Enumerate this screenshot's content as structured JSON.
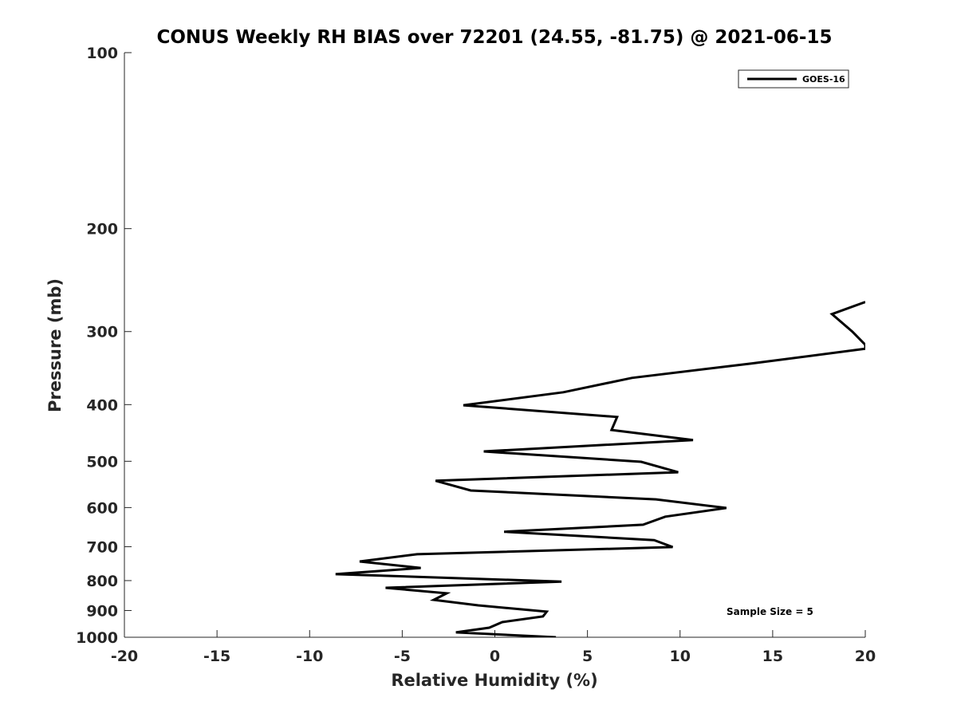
{
  "chart_data": {
    "type": "line",
    "title": "CONUS Weekly RH BIAS over 72201 (24.55, -81.75) @ 2021-06-15",
    "xlabel": "Relative Humidity (%)",
    "ylabel": "Pressure (mb)",
    "xlim": [
      -20,
      20
    ],
    "ylim": [
      100,
      1000
    ],
    "yscale": "log",
    "yreversed": true,
    "grid": false,
    "legend_position": "top-right",
    "xticks": [
      "-20",
      "-15",
      "-10",
      "-5",
      "0",
      "5",
      "10",
      "15",
      "20"
    ],
    "yticks": [
      "100",
      "200",
      "300",
      "400",
      "500",
      "600",
      "700",
      "800",
      "900",
      "1000"
    ],
    "annotation": "Sample Size = 5",
    "series": [
      {
        "name": "GOES-16",
        "color": "#000000",
        "x": [
          20,
          18.2,
          19.3,
          20,
          20,
          13.9,
          7.4,
          3.7,
          -1.7,
          6.6,
          6.3,
          10.7,
          -0.6,
          7.9,
          9.9,
          -3.2,
          -1.3,
          8.7,
          12.5,
          9.2,
          8.0,
          0.5,
          8.6,
          9.6,
          -4.2,
          -7.3,
          -4.0,
          -8.6,
          3.6,
          -5.9,
          -2.6,
          -3.3,
          -0.9,
          2.8,
          2.6,
          0.4,
          -0.3,
          -2.1,
          3.3
        ],
        "y": [
          267,
          280,
          300,
          316,
          321,
          340,
          360,
          381,
          401,
          420,
          442,
          460,
          481,
          501,
          522,
          540,
          561,
          581,
          601,
          622,
          642,
          660,
          682,
          701,
          721,
          742,
          761,
          780,
          803,
          823,
          841,
          863,
          882,
          904,
          921,
          942,
          963,
          981,
          1000
        ]
      }
    ]
  }
}
